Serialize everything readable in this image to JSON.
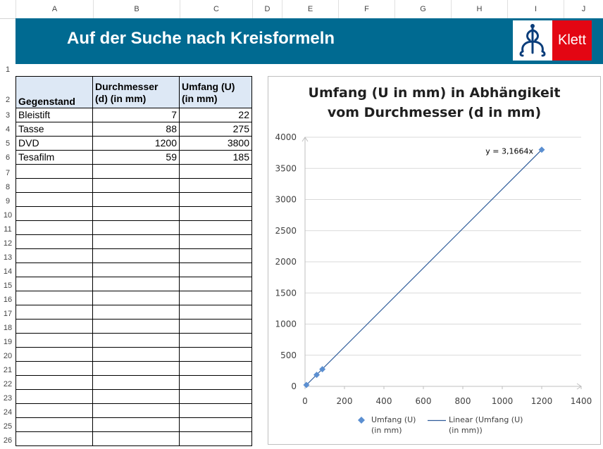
{
  "columns": [
    "A",
    "B",
    "C",
    "D",
    "E",
    "F",
    "G",
    "H",
    "I",
    "J"
  ],
  "rows": [
    "1",
    "2",
    "3",
    "4",
    "5",
    "6",
    "7",
    "8",
    "9",
    "10",
    "11",
    "12",
    "13",
    "14",
    "15",
    "16",
    "17",
    "18",
    "19",
    "20",
    "21",
    "22",
    "23",
    "24",
    "25",
    "26"
  ],
  "banner": {
    "title": "Auf der Suche nach Kreisformeln",
    "logo_text": "Klett",
    "logo_icon": "klett-logo-icon",
    "bg_color": "#006a91",
    "logo_color": "#e30613"
  },
  "table": {
    "headers": [
      "Gegenstand",
      "Durchmesser (d) (in mm)",
      "Umfang (U) (in mm)"
    ],
    "header_lines": {
      "a": "Gegenstand",
      "b1": "Durchmesser",
      "b2": "(d) (in mm)",
      "c1": "Umfang (U)",
      "c2": "(in mm)"
    },
    "rows": [
      {
        "item": "Bleistift",
        "d": "7",
        "u": "22"
      },
      {
        "item": "Tasse",
        "d": "88",
        "u": "275"
      },
      {
        "item": "DVD",
        "d": "1200",
        "u": "3800"
      },
      {
        "item": "Tesafilm",
        "d": "59",
        "u": "185"
      }
    ]
  },
  "chart_data": {
    "type": "scatter",
    "title": "Umfang (U in mm) in Abhängikeit vom Durchmesser (d in mm)",
    "title_lines": [
      "Umfang (U in mm) in Abhängikeit",
      "vom Durchmesser (d in mm)"
    ],
    "series": [
      {
        "name": "Umfang (U) (in mm)",
        "x": [
          7,
          88,
          1200,
          59
        ],
        "y": [
          22,
          275,
          3800,
          185
        ],
        "marker": "diamond",
        "color": "#5b8fd1"
      }
    ],
    "trendline": {
      "name": "Linear (Umfang (U) (in mm))",
      "type": "linear",
      "slope": 3.1664,
      "label": "y = 3,1664x",
      "color": "#2e5c9a"
    },
    "xlim": [
      0,
      1400
    ],
    "ylim": [
      0,
      4000
    ],
    "xticks": [
      0,
      200,
      400,
      600,
      800,
      1000,
      1200,
      1400
    ],
    "yticks": [
      0,
      500,
      1000,
      1500,
      2000,
      2500,
      3000,
      3500,
      4000
    ],
    "grid": true,
    "legend_position": "bottom",
    "legend": {
      "series_line1": "Umfang (U)",
      "series_line2": "(in mm)",
      "trend_line1": "Linear (Umfang (U)",
      "trend_line2": "(in mm))"
    }
  }
}
